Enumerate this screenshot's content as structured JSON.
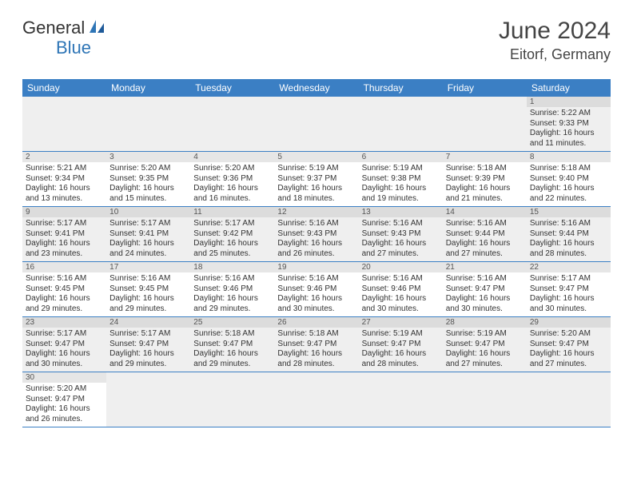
{
  "logo": {
    "text1": "General",
    "text2": "Blue"
  },
  "header": {
    "month": "June 2024",
    "location": "Eitorf, Germany"
  },
  "dayNames": [
    "Sunday",
    "Monday",
    "Tuesday",
    "Wednesday",
    "Thursday",
    "Friday",
    "Saturday"
  ],
  "colors": {
    "headerBar": "#3b7fc4",
    "logoBlue": "#2e75b6",
    "stripe": "#efefef",
    "dayNumBg": "#e6e6e6"
  },
  "weeks": [
    [
      null,
      null,
      null,
      null,
      null,
      null,
      {
        "n": "1",
        "sr": "Sunrise: 5:22 AM",
        "ss": "Sunset: 9:33 PM",
        "dl": "Daylight: 16 hours and 11 minutes."
      }
    ],
    [
      {
        "n": "2",
        "sr": "Sunrise: 5:21 AM",
        "ss": "Sunset: 9:34 PM",
        "dl": "Daylight: 16 hours and 13 minutes."
      },
      {
        "n": "3",
        "sr": "Sunrise: 5:20 AM",
        "ss": "Sunset: 9:35 PM",
        "dl": "Daylight: 16 hours and 15 minutes."
      },
      {
        "n": "4",
        "sr": "Sunrise: 5:20 AM",
        "ss": "Sunset: 9:36 PM",
        "dl": "Daylight: 16 hours and 16 minutes."
      },
      {
        "n": "5",
        "sr": "Sunrise: 5:19 AM",
        "ss": "Sunset: 9:37 PM",
        "dl": "Daylight: 16 hours and 18 minutes."
      },
      {
        "n": "6",
        "sr": "Sunrise: 5:19 AM",
        "ss": "Sunset: 9:38 PM",
        "dl": "Daylight: 16 hours and 19 minutes."
      },
      {
        "n": "7",
        "sr": "Sunrise: 5:18 AM",
        "ss": "Sunset: 9:39 PM",
        "dl": "Daylight: 16 hours and 21 minutes."
      },
      {
        "n": "8",
        "sr": "Sunrise: 5:18 AM",
        "ss": "Sunset: 9:40 PM",
        "dl": "Daylight: 16 hours and 22 minutes."
      }
    ],
    [
      {
        "n": "9",
        "sr": "Sunrise: 5:17 AM",
        "ss": "Sunset: 9:41 PM",
        "dl": "Daylight: 16 hours and 23 minutes."
      },
      {
        "n": "10",
        "sr": "Sunrise: 5:17 AM",
        "ss": "Sunset: 9:41 PM",
        "dl": "Daylight: 16 hours and 24 minutes."
      },
      {
        "n": "11",
        "sr": "Sunrise: 5:17 AM",
        "ss": "Sunset: 9:42 PM",
        "dl": "Daylight: 16 hours and 25 minutes."
      },
      {
        "n": "12",
        "sr": "Sunrise: 5:16 AM",
        "ss": "Sunset: 9:43 PM",
        "dl": "Daylight: 16 hours and 26 minutes."
      },
      {
        "n": "13",
        "sr": "Sunrise: 5:16 AM",
        "ss": "Sunset: 9:43 PM",
        "dl": "Daylight: 16 hours and 27 minutes."
      },
      {
        "n": "14",
        "sr": "Sunrise: 5:16 AM",
        "ss": "Sunset: 9:44 PM",
        "dl": "Daylight: 16 hours and 27 minutes."
      },
      {
        "n": "15",
        "sr": "Sunrise: 5:16 AM",
        "ss": "Sunset: 9:44 PM",
        "dl": "Daylight: 16 hours and 28 minutes."
      }
    ],
    [
      {
        "n": "16",
        "sr": "Sunrise: 5:16 AM",
        "ss": "Sunset: 9:45 PM",
        "dl": "Daylight: 16 hours and 29 minutes."
      },
      {
        "n": "17",
        "sr": "Sunrise: 5:16 AM",
        "ss": "Sunset: 9:45 PM",
        "dl": "Daylight: 16 hours and 29 minutes."
      },
      {
        "n": "18",
        "sr": "Sunrise: 5:16 AM",
        "ss": "Sunset: 9:46 PM",
        "dl": "Daylight: 16 hours and 29 minutes."
      },
      {
        "n": "19",
        "sr": "Sunrise: 5:16 AM",
        "ss": "Sunset: 9:46 PM",
        "dl": "Daylight: 16 hours and 30 minutes."
      },
      {
        "n": "20",
        "sr": "Sunrise: 5:16 AM",
        "ss": "Sunset: 9:46 PM",
        "dl": "Daylight: 16 hours and 30 minutes."
      },
      {
        "n": "21",
        "sr": "Sunrise: 5:16 AM",
        "ss": "Sunset: 9:47 PM",
        "dl": "Daylight: 16 hours and 30 minutes."
      },
      {
        "n": "22",
        "sr": "Sunrise: 5:17 AM",
        "ss": "Sunset: 9:47 PM",
        "dl": "Daylight: 16 hours and 30 minutes."
      }
    ],
    [
      {
        "n": "23",
        "sr": "Sunrise: 5:17 AM",
        "ss": "Sunset: 9:47 PM",
        "dl": "Daylight: 16 hours and 30 minutes."
      },
      {
        "n": "24",
        "sr": "Sunrise: 5:17 AM",
        "ss": "Sunset: 9:47 PM",
        "dl": "Daylight: 16 hours and 29 minutes."
      },
      {
        "n": "25",
        "sr": "Sunrise: 5:18 AM",
        "ss": "Sunset: 9:47 PM",
        "dl": "Daylight: 16 hours and 29 minutes."
      },
      {
        "n": "26",
        "sr": "Sunrise: 5:18 AM",
        "ss": "Sunset: 9:47 PM",
        "dl": "Daylight: 16 hours and 28 minutes."
      },
      {
        "n": "27",
        "sr": "Sunrise: 5:19 AM",
        "ss": "Sunset: 9:47 PM",
        "dl": "Daylight: 16 hours and 28 minutes."
      },
      {
        "n": "28",
        "sr": "Sunrise: 5:19 AM",
        "ss": "Sunset: 9:47 PM",
        "dl": "Daylight: 16 hours and 27 minutes."
      },
      {
        "n": "29",
        "sr": "Sunrise: 5:20 AM",
        "ss": "Sunset: 9:47 PM",
        "dl": "Daylight: 16 hours and 27 minutes."
      }
    ],
    [
      {
        "n": "30",
        "sr": "Sunrise: 5:20 AM",
        "ss": "Sunset: 9:47 PM",
        "dl": "Daylight: 16 hours and 26 minutes."
      },
      null,
      null,
      null,
      null,
      null,
      null
    ]
  ]
}
